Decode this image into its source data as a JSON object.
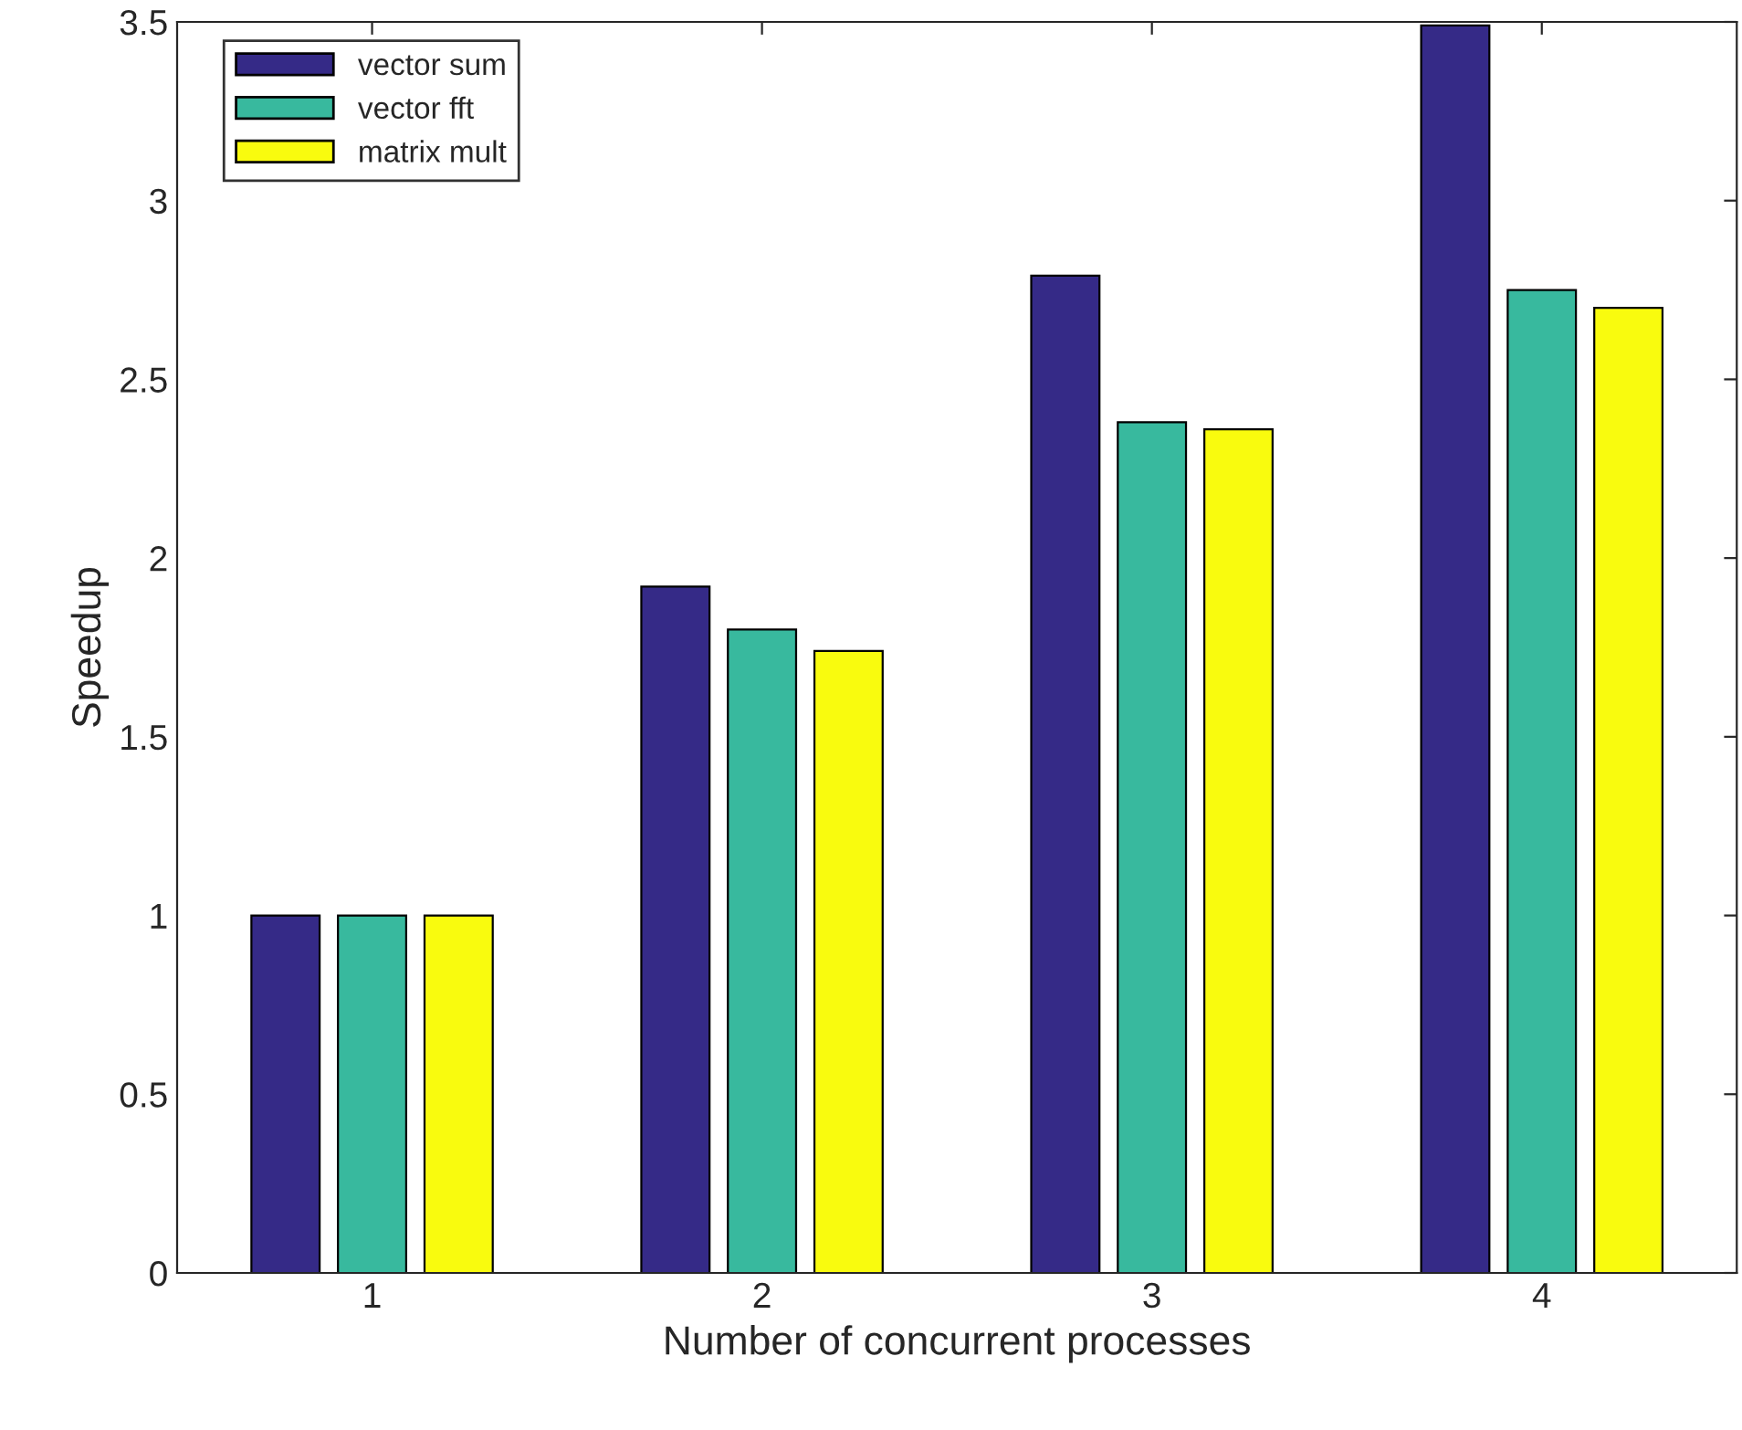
{
  "chart_data": {
    "type": "bar",
    "xlabel": "Number of concurrent processes",
    "ylabel": "Speedup",
    "categories": [
      "1",
      "2",
      "3",
      "4"
    ],
    "series": [
      {
        "name": "vector sum",
        "color": "#352a87",
        "values": [
          1.0,
          1.92,
          2.79,
          3.49
        ]
      },
      {
        "name": "vector fft",
        "color": "#38b99e",
        "values": [
          1.0,
          1.8,
          2.38,
          2.75
        ]
      },
      {
        "name": "matrix mult",
        "color": "#f9fb0e",
        "values": [
          1.0,
          1.74,
          2.36,
          2.7
        ]
      }
    ],
    "ylim": [
      0,
      3.5
    ],
    "yticks": [
      0,
      0.5,
      1,
      1.5,
      2,
      2.5,
      3,
      3.5
    ],
    "legend": "top left",
    "grid": false
  }
}
